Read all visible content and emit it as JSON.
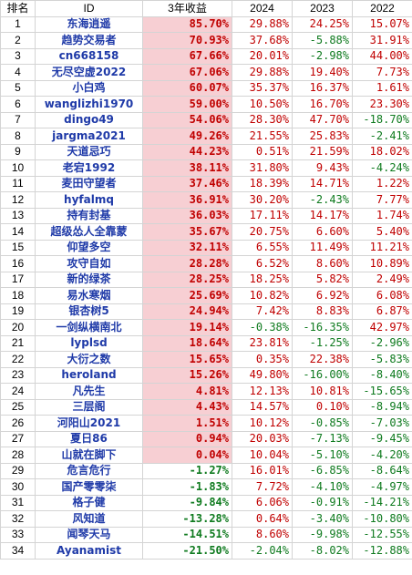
{
  "headers": {
    "rank": "排名",
    "id": "ID",
    "ret3y": "3年收益",
    "y2024": "2024",
    "y2023": "2023",
    "y2022": "2022"
  },
  "colors": {
    "positive": "#c00000",
    "negative": "#0e7a1e",
    "id_text": "#1f3aa8",
    "highlight": "#f7cfd3"
  },
  "rows": [
    {
      "rank": "1",
      "id": "东海逍遥",
      "ret3y": "85.70%",
      "y2024": "29.88%",
      "y2023": "24.25%",
      "y2022": "15.07%"
    },
    {
      "rank": "2",
      "id": "趋势交易者",
      "ret3y": "70.93%",
      "y2024": "37.68%",
      "y2023": "-5.88%",
      "y2022": "31.91%"
    },
    {
      "rank": "3",
      "id": "cn668158",
      "ret3y": "67.66%",
      "y2024": "20.01%",
      "y2023": "-2.98%",
      "y2022": "44.00%"
    },
    {
      "rank": "4",
      "id": "无尽空虚2022",
      "ret3y": "67.06%",
      "y2024": "29.88%",
      "y2023": "19.40%",
      "y2022": "7.73%"
    },
    {
      "rank": "5",
      "id": "小白鸡",
      "ret3y": "60.07%",
      "y2024": "35.37%",
      "y2023": "16.37%",
      "y2022": "1.61%"
    },
    {
      "rank": "6",
      "id": "wanglizhi1970",
      "ret3y": "59.00%",
      "y2024": "10.50%",
      "y2023": "16.70%",
      "y2022": "23.30%"
    },
    {
      "rank": "7",
      "id": "dingo49",
      "ret3y": "54.06%",
      "y2024": "28.30%",
      "y2023": "47.70%",
      "y2022": "-18.70%"
    },
    {
      "rank": "8",
      "id": "jargma2021",
      "ret3y": "49.26%",
      "y2024": "21.55%",
      "y2023": "25.83%",
      "y2022": "-2.41%"
    },
    {
      "rank": "9",
      "id": "天道忌巧",
      "ret3y": "44.23%",
      "y2024": "0.51%",
      "y2023": "21.59%",
      "y2022": "18.02%"
    },
    {
      "rank": "10",
      "id": "老宕1992",
      "ret3y": "38.11%",
      "y2024": "31.80%",
      "y2023": "9.43%",
      "y2022": "-4.24%"
    },
    {
      "rank": "11",
      "id": "麦田守望者",
      "ret3y": "37.46%",
      "y2024": "18.39%",
      "y2023": "14.71%",
      "y2022": "1.22%"
    },
    {
      "rank": "12",
      "id": "hyfalmq",
      "ret3y": "36.91%",
      "y2024": "30.20%",
      "y2023": "-2.43%",
      "y2022": "7.77%"
    },
    {
      "rank": "13",
      "id": "持有封基",
      "ret3y": "36.03%",
      "y2024": "17.11%",
      "y2023": "14.17%",
      "y2022": "1.74%"
    },
    {
      "rank": "14",
      "id": "超级怂人全靠蒙",
      "ret3y": "35.67%",
      "y2024": "20.75%",
      "y2023": "6.60%",
      "y2022": "5.40%"
    },
    {
      "rank": "15",
      "id": "仰望多空",
      "ret3y": "32.11%",
      "y2024": "6.55%",
      "y2023": "11.49%",
      "y2022": "11.21%"
    },
    {
      "rank": "16",
      "id": "攻守自如",
      "ret3y": "28.28%",
      "y2024": "6.52%",
      "y2023": "8.60%",
      "y2022": "10.89%"
    },
    {
      "rank": "17",
      "id": "新的绿茶",
      "ret3y": "28.25%",
      "y2024": "18.25%",
      "y2023": "5.82%",
      "y2022": "2.49%"
    },
    {
      "rank": "18",
      "id": "易水寒烟",
      "ret3y": "25.69%",
      "y2024": "10.82%",
      "y2023": "6.92%",
      "y2022": "6.08%"
    },
    {
      "rank": "19",
      "id": "银杏树5",
      "ret3y": "24.94%",
      "y2024": "7.42%",
      "y2023": "8.83%",
      "y2022": "6.87%"
    },
    {
      "rank": "20",
      "id": "一剑纵横南北",
      "ret3y": "19.14%",
      "y2024": "-0.38%",
      "y2023": "-16.35%",
      "y2022": "42.97%"
    },
    {
      "rank": "21",
      "id": "lyplsd",
      "ret3y": "18.64%",
      "y2024": "23.81%",
      "y2023": "-1.25%",
      "y2022": "-2.96%"
    },
    {
      "rank": "22",
      "id": "大衍之数",
      "ret3y": "15.65%",
      "y2024": "0.35%",
      "y2023": "22.38%",
      "y2022": "-5.83%"
    },
    {
      "rank": "23",
      "id": "heroland",
      "ret3y": "15.26%",
      "y2024": "49.80%",
      "y2023": "-16.00%",
      "y2022": "-8.40%"
    },
    {
      "rank": "24",
      "id": "凡先生",
      "ret3y": "4.81%",
      "y2024": "12.13%",
      "y2023": "10.81%",
      "y2022": "-15.65%"
    },
    {
      "rank": "25",
      "id": "三层阁",
      "ret3y": "4.43%",
      "y2024": "14.57%",
      "y2023": "0.10%",
      "y2022": "-8.94%"
    },
    {
      "rank": "26",
      "id": "河阳山2021",
      "ret3y": "1.51%",
      "y2024": "10.12%",
      "y2023": "-0.85%",
      "y2022": "-7.03%"
    },
    {
      "rank": "27",
      "id": "夏日86",
      "ret3y": "0.94%",
      "y2024": "20.03%",
      "y2023": "-7.13%",
      "y2022": "-9.45%"
    },
    {
      "rank": "28",
      "id": "山就在脚下",
      "ret3y": "0.04%",
      "y2024": "10.04%",
      "y2023": "-5.10%",
      "y2022": "-4.20%"
    },
    {
      "rank": "29",
      "id": "危言危行",
      "ret3y": "-1.27%",
      "y2024": "16.01%",
      "y2023": "-6.85%",
      "y2022": "-8.64%"
    },
    {
      "rank": "30",
      "id": "国产零零柒",
      "ret3y": "-1.83%",
      "y2024": "7.72%",
      "y2023": "-4.10%",
      "y2022": "-4.97%"
    },
    {
      "rank": "31",
      "id": "格子健",
      "ret3y": "-9.84%",
      "y2024": "6.06%",
      "y2023": "-0.91%",
      "y2022": "-14.21%"
    },
    {
      "rank": "32",
      "id": "风知道",
      "ret3y": "-13.28%",
      "y2024": "0.64%",
      "y2023": "-3.40%",
      "y2022": "-10.80%"
    },
    {
      "rank": "33",
      "id": "闻琴天马",
      "ret3y": "-14.51%",
      "y2024": "8.60%",
      "y2023": "-9.98%",
      "y2022": "-12.55%"
    },
    {
      "rank": "34",
      "id": "Ayanamist",
      "ret3y": "-21.50%",
      "y2024": "-2.04%",
      "y2023": "-8.02%",
      "y2022": "-12.88%"
    }
  ]
}
